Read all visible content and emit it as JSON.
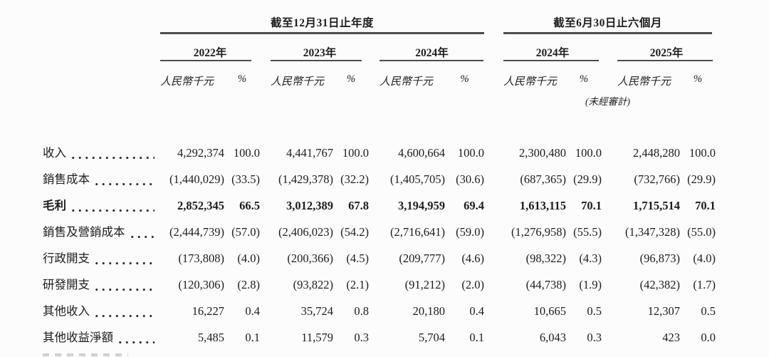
{
  "page": {
    "background": "#fcfcfc",
    "text_color": "#1d1d1d",
    "rule_color": "#4d4d4d"
  },
  "table": {
    "period_groups": [
      {
        "title": "截至12月31日止年度",
        "years": [
          "2022年",
          "2023年",
          "2024年"
        ]
      },
      {
        "title": "截至6月30日止六個月",
        "years": [
          "2024年",
          "2025年"
        ]
      }
    ],
    "column_headers": {
      "amount": "人民幣千元",
      "percent": "%",
      "unaudited_note": "(未經審計)"
    },
    "rows": [
      {
        "label": "收入",
        "bold": false,
        "values": [
          "4,292,374",
          "100.0",
          "4,441,767",
          "100.0",
          "4,600,664",
          "100.0",
          "2,300,480",
          "100.0",
          "2,448,280",
          "100.0"
        ]
      },
      {
        "label": "銷售成本",
        "bold": false,
        "values": [
          "(1,440,029)",
          "(33.5)",
          "(1,429,378)",
          "(32.2)",
          "(1,405,705)",
          "(30.6)",
          "(687,365)",
          "(29.9)",
          "(732,766)",
          "(29.9)"
        ]
      },
      {
        "label": "毛利",
        "bold": true,
        "values": [
          "2,852,345",
          "66.5",
          "3,012,389",
          "67.8",
          "3,194,959",
          "69.4",
          "1,613,115",
          "70.1",
          "1,715,514",
          "70.1"
        ]
      },
      {
        "label": "銷售及營銷成本",
        "bold": false,
        "values": [
          "(2,444,739)",
          "(57.0)",
          "(2,406,023)",
          "(54.2)",
          "(2,716,641)",
          "(59.0)",
          "(1,276,958)",
          "(55.5)",
          "(1,347,328)",
          "(55.0)"
        ]
      },
      {
        "label": "行政開支",
        "bold": false,
        "values": [
          "(173,808)",
          "(4.0)",
          "(200,366)",
          "(4.5)",
          "(209,777)",
          "(4.6)",
          "(98,322)",
          "(4.3)",
          "(96,873)",
          "(4.0)"
        ]
      },
      {
        "label": "研發開支",
        "bold": false,
        "values": [
          "(120,306)",
          "(2.8)",
          "(93,822)",
          "(2.1)",
          "(91,212)",
          "(2.0)",
          "(44,738)",
          "(1.9)",
          "(42,382)",
          "(1.7)"
        ]
      },
      {
        "label": "其他收入",
        "bold": false,
        "values": [
          "16,227",
          "0.4",
          "35,724",
          "0.8",
          "20,180",
          "0.4",
          "10,665",
          "0.5",
          "12,307",
          "0.5"
        ]
      },
      {
        "label": "其他收益淨額",
        "bold": false,
        "values": [
          "5,485",
          "0.1",
          "11,579",
          "0.3",
          "5,704",
          "0.1",
          "6,043",
          "0.3",
          "423",
          "0.0"
        ]
      }
    ]
  }
}
